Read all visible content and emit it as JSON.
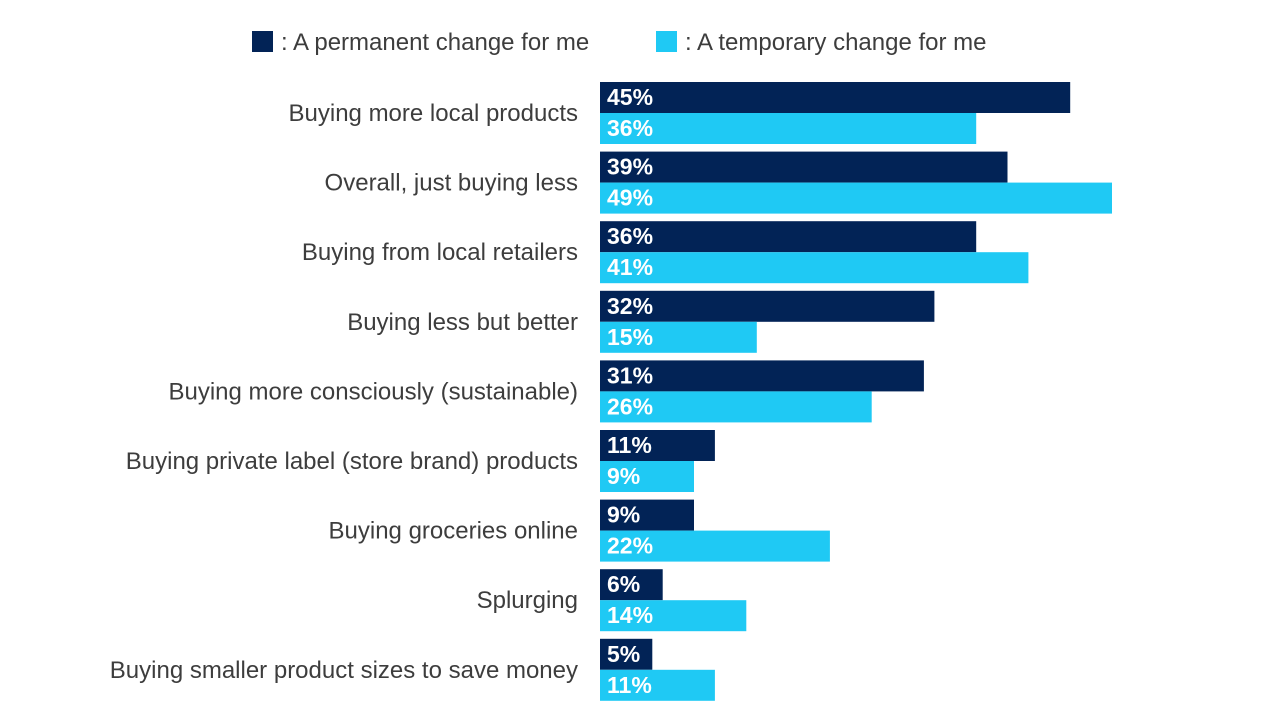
{
  "colors": {
    "permanent": "#022356",
    "temporary": "#1fc9f4",
    "label_text": "#3d3d3d",
    "bar_text": "#ffffff"
  },
  "chart_data": {
    "type": "bar",
    "orientation": "horizontal",
    "title": "",
    "xlabel": "",
    "ylabel": "",
    "xlim": [
      0,
      50
    ],
    "grid": false,
    "legend_position": "top",
    "categories": [
      "Buying more local products",
      "Overall, just buying less",
      "Buying from local retailers",
      "Buying less but better",
      "Buying more consciously (sustainable)",
      "Buying private label (store brand) products",
      "Buying groceries online",
      "Splurging",
      "Buying smaller product sizes to save money"
    ],
    "series": [
      {
        "name": ": A permanent change for me",
        "values": [
          45,
          39,
          36,
          32,
          31,
          11,
          9,
          6,
          5
        ],
        "labels": [
          "45%",
          "39%",
          "36%",
          "32%",
          "31%",
          "11%",
          "9%",
          "6%",
          "5%"
        ]
      },
      {
        "name": ": A temporary change for me",
        "values": [
          36,
          49,
          41,
          15,
          26,
          9,
          22,
          14,
          11
        ],
        "labels": [
          "36%",
          "49%",
          "41%",
          "15%",
          "26%",
          "9%",
          "22%",
          "14%",
          "11%"
        ]
      }
    ]
  }
}
